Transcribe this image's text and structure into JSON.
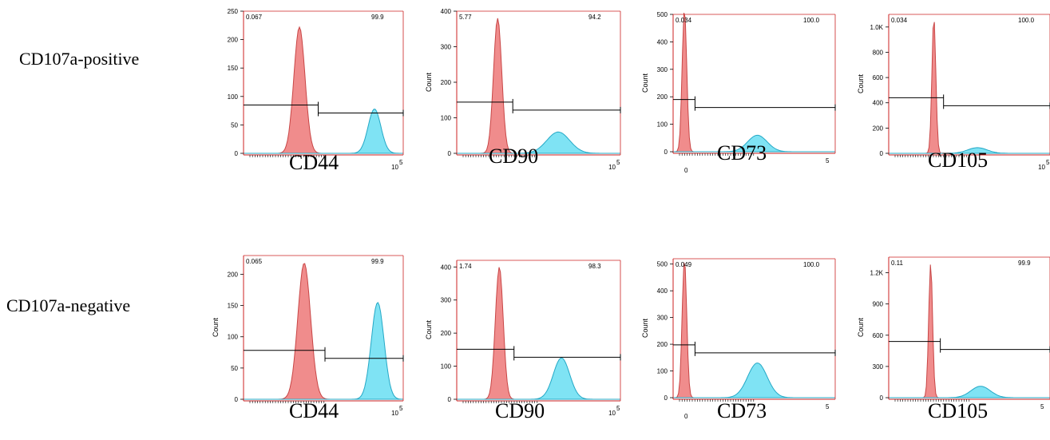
{
  "rows": [
    {
      "label": "CD107a-positive"
    },
    {
      "label": "CD107a-negative"
    }
  ],
  "colors": {
    "control": "#f08c8c",
    "control_stroke": "#c84646",
    "stained": "#7fe3f4",
    "stained_stroke": "#24a8c6",
    "axis": "#cc2222"
  },
  "chart_data": [
    {
      "type": "area",
      "marker": "CD44",
      "ylabel": "",
      "ylim": [
        0,
        250
      ],
      "yticks": [
        "0",
        "50",
        "100",
        "150",
        "200",
        "250"
      ],
      "xtick": "10",
      "xtick_exp": "5",
      "gate_left": "0.067",
      "gate_right": "99.9",
      "control": {
        "peak_x": 0.35,
        "width": 0.035,
        "height": 222
      },
      "stained": {
        "peak_x": 0.82,
        "width": 0.04,
        "height": 78
      }
    },
    {
      "type": "area",
      "marker": "CD90",
      "ylabel": "Count",
      "ylim": [
        0,
        400
      ],
      "yticks": [
        "0",
        "100",
        "200",
        "300",
        "400"
      ],
      "xtick": "10",
      "xtick_exp": "5",
      "gate_left": "5.77",
      "gate_right": "94.2",
      "control": {
        "peak_x": 0.25,
        "width": 0.025,
        "height": 380
      },
      "stained": {
        "peak_x": 0.62,
        "width": 0.07,
        "height": 60
      }
    },
    {
      "type": "area",
      "marker": "CD73",
      "ylabel": "Count",
      "ylim": [
        0,
        500
      ],
      "yticks": [
        "0",
        "100",
        "200",
        "300",
        "400",
        "500"
      ],
      "xtick": "0",
      "xtick2": "5",
      "gate_left": "0.034",
      "gate_right": "100.0",
      "control": {
        "peak_x": 0.07,
        "width": 0.014,
        "height": 520
      },
      "stained": {
        "peak_x": 0.52,
        "width": 0.06,
        "height": 60
      }
    },
    {
      "type": "area",
      "marker": "CD105",
      "ylabel": "Count",
      "ylim": [
        0,
        1100
      ],
      "yticks": [
        "0",
        "200",
        "400",
        "600",
        "800",
        "1.0K"
      ],
      "yvals": [
        0,
        200,
        400,
        600,
        800,
        1000
      ],
      "xtick": "10",
      "xtick_exp": "5",
      "gate_left": "0.034",
      "gate_right": "100.0",
      "control": {
        "peak_x": 0.28,
        "width": 0.012,
        "height": 1080
      },
      "stained": {
        "peak_x": 0.55,
        "width": 0.06,
        "height": 45
      }
    },
    {
      "type": "area",
      "marker": "CD44",
      "ylabel": "Count",
      "ylim": [
        0,
        230
      ],
      "yticks": [
        "0",
        "50",
        "100",
        "150",
        "200"
      ],
      "xtick": "10",
      "xtick_exp": "5",
      "gate_left": "0.065",
      "gate_right": "99.9",
      "control": {
        "peak_x": 0.38,
        "width": 0.04,
        "height": 218
      },
      "stained": {
        "peak_x": 0.84,
        "width": 0.04,
        "height": 155
      }
    },
    {
      "type": "area",
      "marker": "CD90",
      "ylabel": "Count",
      "ylim": [
        0,
        420
      ],
      "yticks": [
        "0",
        "100",
        "200",
        "300",
        "400"
      ],
      "xtick": "10",
      "xtick_exp": "5",
      "gate_left": "1.74",
      "gate_right": "98.3",
      "control": {
        "peak_x": 0.26,
        "width": 0.024,
        "height": 400
      },
      "stained": {
        "peak_x": 0.64,
        "width": 0.05,
        "height": 125
      }
    },
    {
      "type": "area",
      "marker": "CD73",
      "ylabel": "Count",
      "ylim": [
        0,
        520
      ],
      "yticks": [
        "0",
        "100",
        "200",
        "300",
        "400",
        "500"
      ],
      "xtick": "0",
      "xtick2": "5",
      "gate_left": "0.049",
      "gate_right": "100.0",
      "control": {
        "peak_x": 0.07,
        "width": 0.014,
        "height": 520
      },
      "stained": {
        "peak_x": 0.52,
        "width": 0.06,
        "height": 130
      }
    },
    {
      "type": "area",
      "marker": "CD105",
      "ylabel": "Count",
      "ylim": [
        0,
        1350
      ],
      "yticks": [
        "0",
        "300",
        "600",
        "900",
        "1.2K"
      ],
      "yvals": [
        0,
        300,
        600,
        900,
        1200
      ],
      "xtick": "",
      "xtick2": "5",
      "gate_left": "0.11",
      "gate_right": "99.9",
      "control": {
        "peak_x": 0.26,
        "width": 0.012,
        "height": 1290
      },
      "stained": {
        "peak_x": 0.57,
        "width": 0.06,
        "height": 110
      }
    }
  ]
}
